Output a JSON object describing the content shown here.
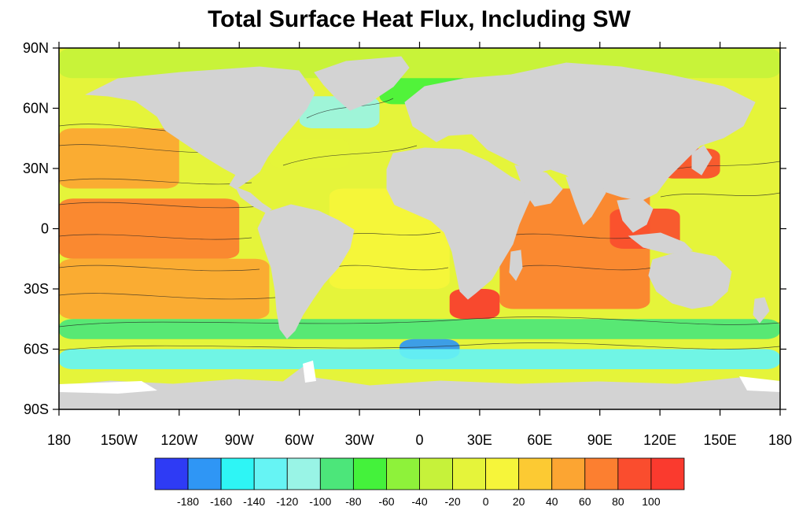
{
  "chart_data": {
    "type": "heatmap",
    "title": "Total Surface Heat Flux, Including SW",
    "projection": "cylindrical-equidistant",
    "x_range": [
      -180,
      180
    ],
    "y_range": [
      -90,
      90
    ],
    "x_ticks": [
      {
        "value": -180,
        "label": "180"
      },
      {
        "value": -150,
        "label": "150W"
      },
      {
        "value": -120,
        "label": "120W"
      },
      {
        "value": -90,
        "label": "90W"
      },
      {
        "value": -60,
        "label": "60W"
      },
      {
        "value": -30,
        "label": "30W"
      },
      {
        "value": 0,
        "label": "0"
      },
      {
        "value": 30,
        "label": "30E"
      },
      {
        "value": 60,
        "label": "60E"
      },
      {
        "value": 90,
        "label": "90E"
      },
      {
        "value": 120,
        "label": "120E"
      },
      {
        "value": 150,
        "label": "150E"
      },
      {
        "value": 180,
        "label": "180"
      }
    ],
    "y_ticks": [
      {
        "value": 90,
        "label": "90N"
      },
      {
        "value": 60,
        "label": "60N"
      },
      {
        "value": 30,
        "label": "30N"
      },
      {
        "value": 0,
        "label": "0"
      },
      {
        "value": -30,
        "label": "30S"
      },
      {
        "value": -60,
        "label": "60S"
      },
      {
        "value": -90,
        "label": "90S"
      }
    ],
    "land_color": "#d3d3d3",
    "colorbar": {
      "orientation": "horizontal",
      "placement": "bottom",
      "levels": [
        -180,
        -160,
        -140,
        -120,
        -100,
        -80,
        -60,
        -40,
        -20,
        0,
        20,
        40,
        60,
        80,
        100
      ],
      "level_labels": [
        "-180",
        "-160",
        "-140",
        "-120",
        "-100",
        "-80",
        "-60",
        "-40",
        "-20",
        "0",
        "20",
        "40",
        "60",
        "80",
        "100"
      ],
      "colors": [
        "#2e3bf5",
        "#2f96f5",
        "#2ef5f5",
        "#66f4f4",
        "#99f4e6",
        "#4ce67a",
        "#44f23b",
        "#8ef23a",
        "#c6f23a",
        "#e5f43a",
        "#f6f53a",
        "#fcca33",
        "#fca532",
        "#fc7f30",
        "#fa4d2e",
        "#fa3a2e"
      ]
    },
    "flux_regions": [
      {
        "name": "north-atlantic-deep-cooling",
        "lon": [
          -60,
          -20
        ],
        "lat": [
          50,
          66
        ],
        "value": -110
      },
      {
        "name": "arctic-ocean",
        "lon": [
          -180,
          180
        ],
        "lat": [
          75,
          90
        ],
        "value": -40
      },
      {
        "name": "norwegian-sea",
        "lon": [
          -20,
          40
        ],
        "lat": [
          62,
          75
        ],
        "value": -70
      },
      {
        "name": "gulf-stream",
        "lon": [
          -75,
          -35
        ],
        "lat": [
          30,
          45
        ],
        "value": -20
      },
      {
        "name": "kuroshio",
        "lon": [
          120,
          150
        ],
        "lat": [
          25,
          40
        ],
        "value": 80
      },
      {
        "name": "north-pacific",
        "lon": [
          -180,
          -120
        ],
        "lat": [
          20,
          50
        ],
        "value": 40
      },
      {
        "name": "eastern-tropical-pacific",
        "lon": [
          -180,
          -90
        ],
        "lat": [
          -15,
          15
        ],
        "value": 60
      },
      {
        "name": "south-pacific",
        "lon": [
          -180,
          -75
        ],
        "lat": [
          -45,
          -15
        ],
        "value": 50
      },
      {
        "name": "tropical-atlantic",
        "lon": [
          -45,
          15
        ],
        "lat": [
          -30,
          20
        ],
        "value": 10
      },
      {
        "name": "indian-ocean",
        "lon": [
          40,
          115
        ],
        "lat": [
          -40,
          20
        ],
        "value": 60
      },
      {
        "name": "agulhas",
        "lon": [
          15,
          40
        ],
        "lat": [
          -45,
          -30
        ],
        "value": 100
      },
      {
        "name": "maritime-continent",
        "lon": [
          95,
          130
        ],
        "lat": [
          -10,
          10
        ],
        "value": 90
      },
      {
        "name": "southern-ocean-band",
        "lon": [
          -180,
          180
        ],
        "lat": [
          -55,
          -45
        ],
        "value": -100
      },
      {
        "name": "southern-ocean-deep",
        "lon": [
          -10,
          20
        ],
        "lat": [
          -65,
          -55
        ],
        "value": -180
      },
      {
        "name": "antarctic-margin",
        "lon": [
          -180,
          180
        ],
        "lat": [
          -70,
          -60
        ],
        "value": -140
      }
    ]
  }
}
